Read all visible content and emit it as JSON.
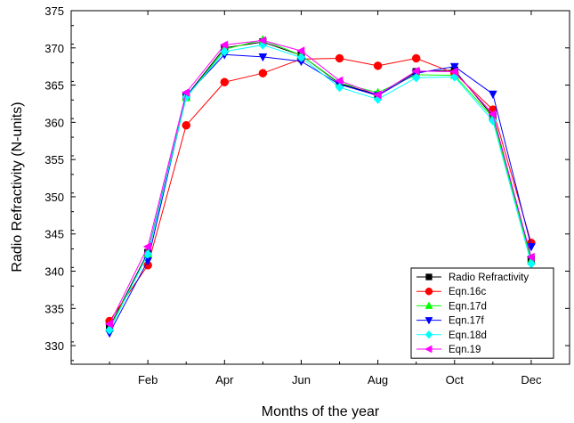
{
  "chart_data": {
    "type": "line",
    "xlabel": "Months of the year",
    "ylabel": "Radio Refractivity (N-units)",
    "x": [
      1,
      2,
      3,
      4,
      5,
      6,
      7,
      8,
      9,
      10,
      11,
      12
    ],
    "xlim": [
      0,
      13
    ],
    "x_ticks": [
      {
        "x": 2,
        "label": "Feb"
      },
      {
        "x": 4,
        "label": "Apr"
      },
      {
        "x": 6,
        "label": "Jun"
      },
      {
        "x": 8,
        "label": "Aug"
      },
      {
        "x": 10,
        "label": "Oct"
      },
      {
        "x": 12,
        "label": "Dec"
      }
    ],
    "ylim": [
      327.5,
      375
    ],
    "y_ticks": [
      330,
      335,
      340,
      345,
      350,
      355,
      360,
      365,
      370,
      375
    ],
    "legend_position": "bottom-right",
    "series": [
      {
        "name": "Radio Refractivity",
        "color": "#000000",
        "marker": "square",
        "values": [
          332.5,
          342.5,
          363.5,
          370.0,
          370.8,
          369.0,
          365.2,
          363.7,
          366.8,
          367.0,
          360.8,
          341.6
        ]
      },
      {
        "name": "Eqn.16c",
        "color": "#ff0000",
        "marker": "circle",
        "values": [
          333.3,
          340.8,
          359.6,
          365.4,
          366.6,
          368.5,
          368.6,
          367.6,
          368.6,
          366.6,
          361.7,
          343.8
        ]
      },
      {
        "name": "Eqn.17d",
        "color": "#00ff00",
        "marker": "triangle-up",
        "values": [
          332.3,
          342.3,
          363.3,
          369.8,
          371.1,
          369.0,
          365.3,
          364.0,
          366.4,
          366.3,
          360.6,
          341.4
        ]
      },
      {
        "name": "Eqn.17f",
        "color": "#0000ff",
        "marker": "triangle-down",
        "values": [
          331.7,
          341.4,
          363.6,
          369.1,
          368.8,
          368.2,
          365.1,
          363.6,
          366.6,
          367.5,
          363.8,
          343.3
        ]
      },
      {
        "name": "Eqn.18d",
        "color": "#00ffff",
        "marker": "diamond",
        "values": [
          332.1,
          342.3,
          363.4,
          369.5,
          370.4,
          368.7,
          364.7,
          363.1,
          366.0,
          366.1,
          360.2,
          341.0
        ]
      },
      {
        "name": "Eqn.19",
        "color": "#ff00ff",
        "marker": "triangle-left",
        "values": [
          332.9,
          343.3,
          364.0,
          370.4,
          371.0,
          369.6,
          365.6,
          363.7,
          366.9,
          366.8,
          361.1,
          341.9
        ]
      }
    ]
  }
}
